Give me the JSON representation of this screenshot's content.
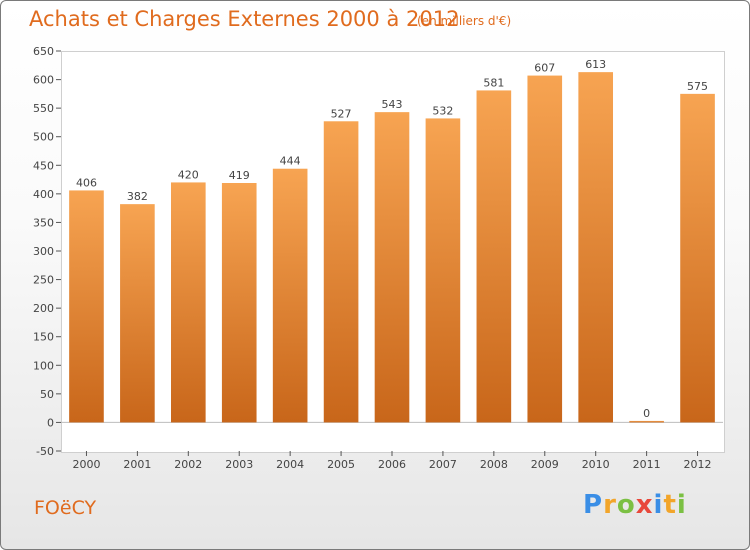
{
  "header": {
    "title": "Achats et Charges Externes 2000 à 2012",
    "unit": "(en milliers d'€)"
  },
  "footer": {
    "place": "FOëCY",
    "logo": [
      "P",
      "r",
      "o",
      "x",
      "i",
      "t",
      "i"
    ]
  },
  "colors": {
    "accent": "#e06b1e",
    "bar_top": "#f7a452",
    "bar_bottom": "#c8661a"
  },
  "chart_data": {
    "type": "bar",
    "title": "Achats et Charges Externes 2000 à 2012",
    "subtitle": "(en milliers d'€)",
    "categories": [
      "2000",
      "2001",
      "2002",
      "2003",
      "2004",
      "2005",
      "2006",
      "2007",
      "2008",
      "2009",
      "2010",
      "2011",
      "2012"
    ],
    "values": [
      406,
      382,
      420,
      419,
      444,
      527,
      543,
      532,
      581,
      607,
      613,
      0,
      575
    ],
    "ylim": [
      -50,
      650
    ],
    "yticks": [
      -50,
      0,
      50,
      100,
      150,
      200,
      250,
      300,
      350,
      400,
      450,
      500,
      550,
      600,
      650
    ],
    "grid": false
  }
}
